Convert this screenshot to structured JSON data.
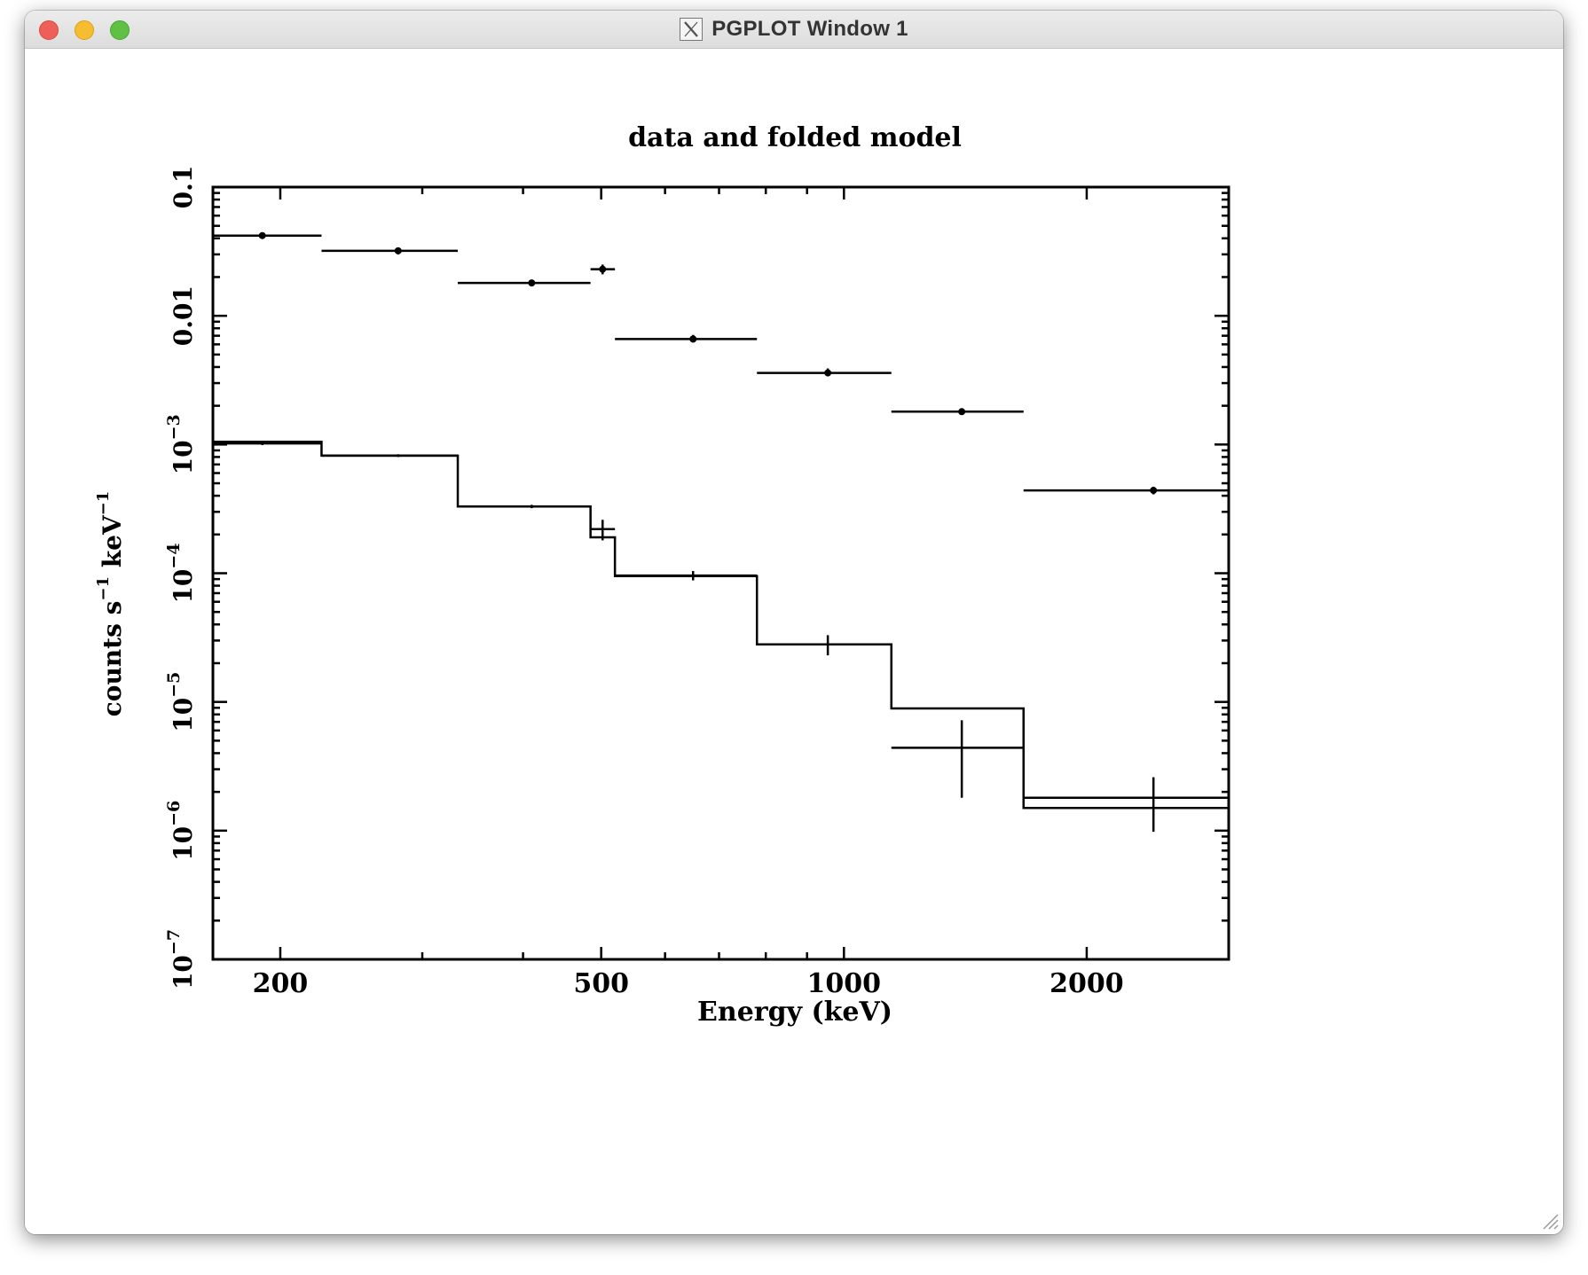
{
  "window": {
    "title": "PGPLOT Window 1",
    "title_icon": "x11-icon",
    "controls": [
      "close",
      "minimize",
      "zoom"
    ]
  },
  "chart_data": {
    "type": "line",
    "title": "data and folded model",
    "xlabel": "Energy (keV)",
    "ylabel_parts": {
      "a": "counts s",
      "sup1": "−1",
      "b": " keV",
      "sup2": "−1"
    },
    "xscale": "log",
    "yscale": "log",
    "xlim": [
      165,
      3000
    ],
    "ylim": [
      1e-07,
      0.1
    ],
    "x_ticks": [
      {
        "value": 200,
        "label": "200"
      },
      {
        "value": 500,
        "label": "500"
      },
      {
        "value": 1000,
        "label": "1000"
      },
      {
        "value": 2000,
        "label": "2000"
      }
    ],
    "y_ticks": [
      {
        "value": 0.1,
        "label": "0.1"
      },
      {
        "value": 0.01,
        "label": "0.01"
      },
      {
        "value": 0.001,
        "label": "10",
        "exp": "−3"
      },
      {
        "value": 0.0001,
        "label": "10",
        "exp": "−4"
      },
      {
        "value": 1e-05,
        "label": "10",
        "exp": "−5"
      },
      {
        "value": 1e-06,
        "label": "10",
        "exp": "−6"
      },
      {
        "value": 1e-07,
        "label": "10",
        "exp": "−7"
      }
    ],
    "series": [
      {
        "points": [
          {
            "x": 190,
            "xlo": 165,
            "xhi": 225,
            "y": 0.042,
            "ylo": 0.04,
            "yhi": 0.044
          },
          {
            "x": 280,
            "xlo": 225,
            "xhi": 332,
            "y": 0.032,
            "ylo": 0.03,
            "yhi": 0.034
          },
          {
            "x": 410,
            "xlo": 332,
            "xhi": 485,
            "y": 0.018,
            "ylo": 0.017,
            "yhi": 0.019
          },
          {
            "x": 502,
            "xlo": 485,
            "xhi": 520,
            "y": 0.023,
            "ylo": 0.021,
            "yhi": 0.025
          },
          {
            "x": 650,
            "xlo": 520,
            "xhi": 780,
            "y": 0.0066,
            "ylo": 0.0062,
            "yhi": 0.0071
          },
          {
            "x": 955,
            "xlo": 780,
            "xhi": 1145,
            "y": 0.0036,
            "ylo": 0.0034,
            "yhi": 0.0039
          },
          {
            "x": 1400,
            "xlo": 1145,
            "xhi": 1670,
            "y": 0.0018,
            "ylo": 0.00172,
            "yhi": 0.0019
          },
          {
            "x": 2420,
            "xlo": 1670,
            "xhi": 3000,
            "y": 0.00044,
            "ylo": 0.00041,
            "yhi": 0.00047
          }
        ]
      },
      {
        "points": [
          {
            "x": 190,
            "xlo": 165,
            "xhi": 225,
            "y": 0.00102,
            "ylo": 0.00099,
            "yhi": 0.00105
          },
          {
            "x": 280,
            "xlo": 225,
            "xhi": 332,
            "y": 0.00082,
            "ylo": 0.0008,
            "yhi": 0.00084
          },
          {
            "x": 410,
            "xlo": 332,
            "xhi": 485,
            "y": 0.00033,
            "ylo": 0.00032,
            "yhi": 0.00034
          },
          {
            "x": 502,
            "xlo": 485,
            "xhi": 520,
            "y": 0.00022,
            "ylo": 0.00018,
            "yhi": 0.00026
          },
          {
            "x": 650,
            "xlo": 520,
            "xhi": 780,
            "y": 9.6e-05,
            "ylo": 8.8e-05,
            "yhi": 0.000104
          },
          {
            "x": 955,
            "xlo": 780,
            "xhi": 1145,
            "y": 2.8e-05,
            "ylo": 2.3e-05,
            "yhi": 3.3e-05
          },
          {
            "x": 1400,
            "xlo": 1145,
            "xhi": 1670,
            "y": 4.4e-06,
            "ylo": 1.8e-06,
            "yhi": 7.2e-06
          },
          {
            "x": 2420,
            "xlo": 1670,
            "xhi": 3000,
            "y": 1.8e-06,
            "ylo": 9.8e-07,
            "yhi": 2.6e-06
          }
        ]
      },
      {
        "step": [
          {
            "xlo": 165,
            "xhi": 225,
            "y": 0.00105
          },
          {
            "xlo": 225,
            "xhi": 332,
            "y": 0.00082
          },
          {
            "xlo": 332,
            "xhi": 485,
            "y": 0.00033
          },
          {
            "xlo": 485,
            "xhi": 520,
            "y": 0.00019
          },
          {
            "xlo": 520,
            "xhi": 780,
            "y": 9.5e-05
          },
          {
            "xlo": 780,
            "xhi": 1145,
            "y": 2.8e-05
          },
          {
            "xlo": 1145,
            "xhi": 1670,
            "y": 8.9e-06
          },
          {
            "xlo": 1670,
            "xhi": 3000,
            "y": 1.5e-06
          }
        ]
      }
    ]
  }
}
